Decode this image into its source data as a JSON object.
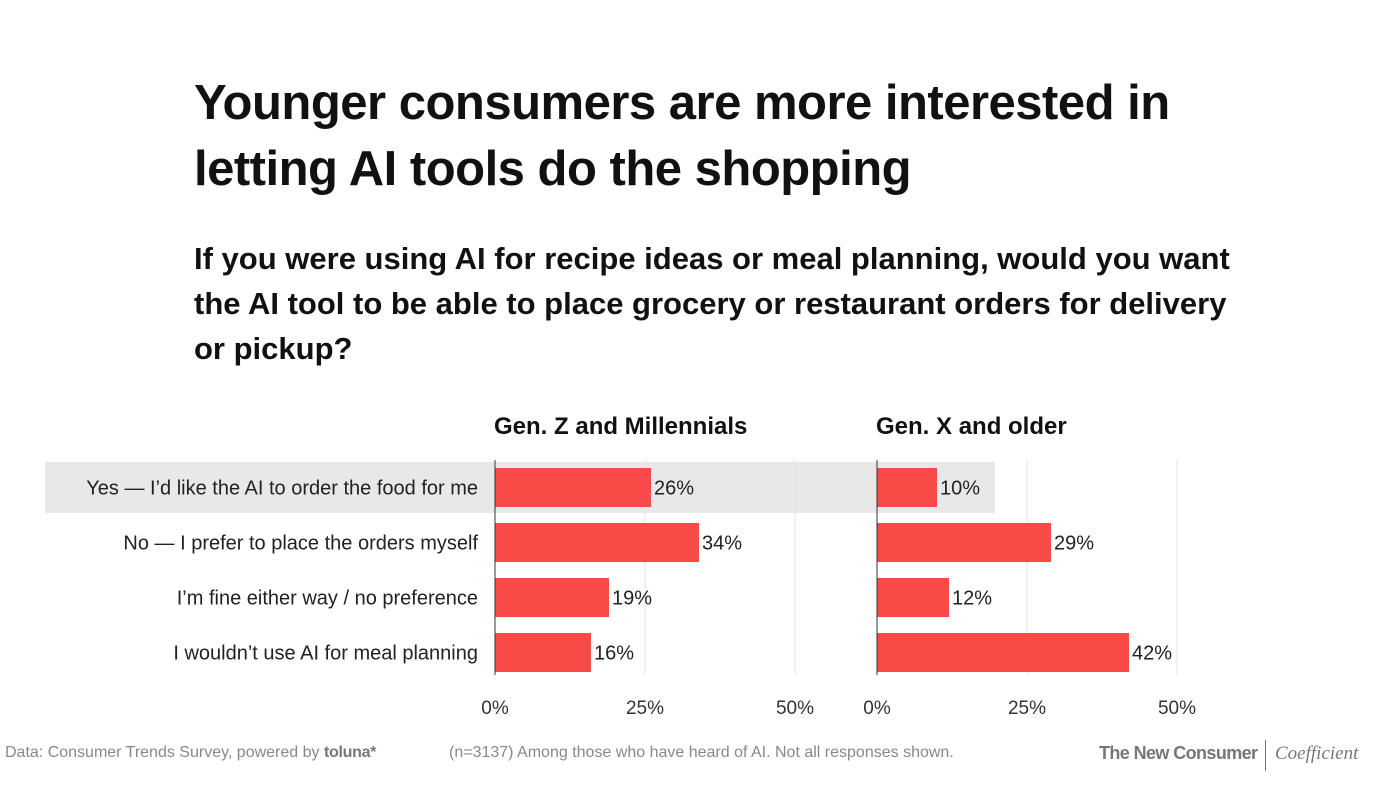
{
  "title": "Younger consumers are more interested in letting AI tools do the shopping",
  "subtitle": "If you were using AI for recipe ideas or meal planning, would you want the AI tool to be able to place grocery or restaurant orders for delivery or pickup?",
  "chart_data": {
    "type": "bar",
    "orientation": "horizontal",
    "title": "Younger consumers are more interested in letting AI tools do the shopping",
    "subtitle": "If you were using AI for recipe ideas or meal planning, would you want the AI tool to be able to place grocery or restaurant orders for delivery or pickup?",
    "categories": [
      "Yes — I’d like the AI to order the food for me",
      "No — I prefer to place the orders myself",
      "I’m fine either way / no preference",
      "I wouldn’t use AI for meal planning"
    ],
    "highlighted_category": "Yes — I’d like the AI to order the food for me",
    "series": [
      {
        "name": "Gen. Z and Millennials",
        "values": [
          26,
          34,
          19,
          16
        ]
      },
      {
        "name": "Gen. X and older",
        "values": [
          10,
          29,
          12,
          42
        ]
      }
    ],
    "value_suffix": "%",
    "xlim": [
      0,
      50
    ],
    "xticks": [
      0,
      25,
      50
    ],
    "xtick_labels": [
      "0%",
      "25%",
      "50%"
    ],
    "grid": true,
    "bar_color": "#fa4a48",
    "highlight_color": "#e8e8e8",
    "xlabel": "",
    "ylabel": ""
  },
  "footer": {
    "source_prefix": "Data: Consumer Trends Survey, powered by",
    "source_brand": "toluna*",
    "note": "(n=3137) Among those who have heard of AI. Not all responses shown.",
    "brand_left": "The New Consumer",
    "brand_right": "Coefficient"
  }
}
